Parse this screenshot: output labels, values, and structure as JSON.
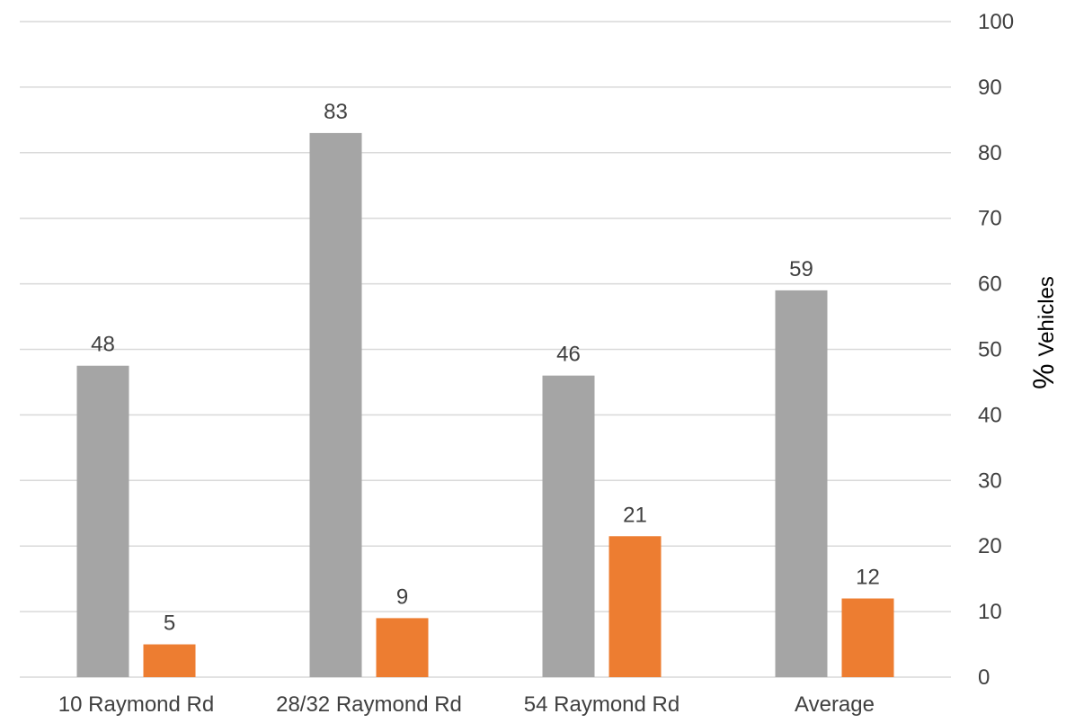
{
  "chart_data": {
    "type": "bar",
    "categories": [
      "10 Raymond Rd",
      "28/32 Raymond Rd",
      "54 Raymond Rd",
      "Average"
    ],
    "series": [
      {
        "values": [
          48,
          83,
          46,
          59
        ],
        "color": "#a5a5a5"
      },
      {
        "values": [
          5,
          9,
          21,
          12
        ],
        "color": "#ed7d31"
      }
    ],
    "plotted_values": [
      [
        47.5,
        83,
        46,
        59
      ],
      [
        5,
        9,
        21.5,
        12
      ]
    ],
    "ylabel_symbol": "%",
    "ylabel_text": "Vehicles",
    "ylim": [
      0,
      100
    ],
    "yticks": [
      0,
      10,
      20,
      30,
      40,
      50,
      60,
      70,
      80,
      90,
      100
    ],
    "y_axis_position": "right",
    "grid": true,
    "legend": "none"
  }
}
